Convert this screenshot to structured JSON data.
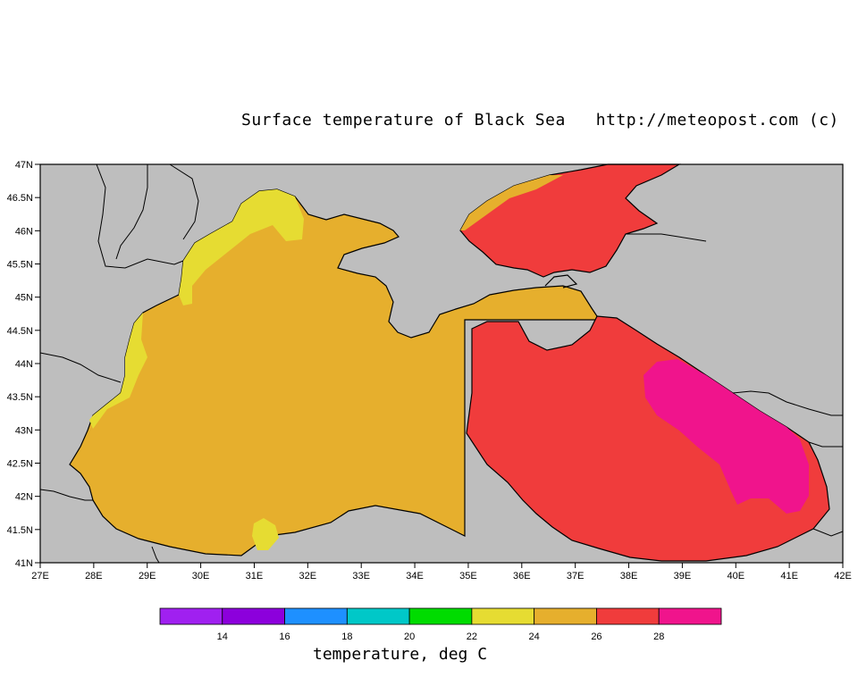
{
  "title": "Surface temperature of Black Sea   http://meteopost.com (c)",
  "map": {
    "lon_labels": [
      "27E",
      "28E",
      "29E",
      "30E",
      "31E",
      "32E",
      "33E",
      "34E",
      "35E",
      "36E",
      "37E",
      "38E",
      "39E",
      "40E",
      "41E",
      "42E"
    ],
    "lat_labels": [
      "47N",
      "46.5N",
      "46N",
      "45.5N",
      "45N",
      "44.5N",
      "44N",
      "43.5N",
      "43N",
      "42.5N",
      "42N",
      "41.5N",
      "41N"
    ],
    "colors": {
      "land": "#bebebe",
      "t22_24": "#e6dc32",
      "t24_26": "#e6af2d",
      "t26_28": "#f03c3c",
      "t28_30": "#f0148c"
    }
  },
  "colorbar": {
    "title": "temperature, deg C",
    "colors": [
      "#a020f0",
      "#8c00dc",
      "#1e90ff",
      "#00c8c8",
      "#00dc00",
      "#e6dc32",
      "#e6af2d",
      "#f03c3c",
      "#f0148c"
    ],
    "labels": [
      "14",
      "16",
      "18",
      "20",
      "22",
      "24",
      "26",
      "28"
    ]
  }
}
